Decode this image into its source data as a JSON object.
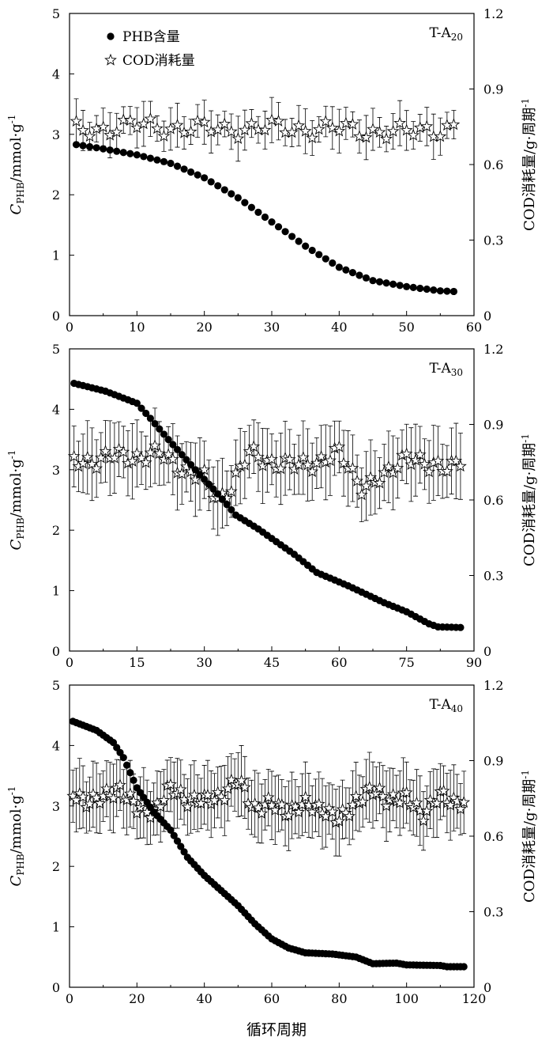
{
  "xlabel": "循环周期",
  "y1label": {
    "main": "C",
    "sub": "PHB",
    "rest": "/mmol·g",
    "sup": "-1"
  },
  "y2label": {
    "main": "COD消耗量/g·周期",
    "sup": "-1"
  },
  "legend": {
    "phb": "PHB含量",
    "cod": "COD消耗量"
  },
  "chart_data": [
    {
      "type": "scatter",
      "tag": {
        "main": "T-A",
        "sub": "20"
      },
      "x_max": 60,
      "x_ticks": [
        0,
        10,
        20,
        30,
        40,
        50,
        60
      ],
      "y1lim": [
        0,
        5
      ],
      "y1_ticks": [
        0,
        1,
        2,
        3,
        4,
        5
      ],
      "y2lim": [
        0,
        1.2
      ],
      "y2_ticks": [
        "0",
        "0.3",
        "0.6",
        "0.9",
        "1.2"
      ],
      "legend_position": "top-left",
      "series": [
        {
          "name": "PHB含量",
          "axis": "left",
          "x_range": [
            1,
            57
          ],
          "keypoints": [
            [
              1,
              2.83
            ],
            [
              5,
              2.76
            ],
            [
              10,
              2.66
            ],
            [
              15,
              2.52
            ],
            [
              20,
              2.28
            ],
            [
              25,
              1.95
            ],
            [
              30,
              1.55
            ],
            [
              35,
              1.15
            ],
            [
              40,
              0.8
            ],
            [
              45,
              0.58
            ],
            [
              50,
              0.48
            ],
            [
              55,
              0.41
            ],
            [
              57,
              0.4
            ]
          ]
        },
        {
          "name": "COD消耗量",
          "axis": "right",
          "x_range": [
            1,
            57
          ],
          "keypoints": [
            [
              1,
              0.735
            ],
            [
              10,
              0.755
            ],
            [
              20,
              0.74
            ],
            [
              30,
              0.745
            ],
            [
              40,
              0.74
            ],
            [
              50,
              0.725
            ],
            [
              57,
              0.75
            ]
          ],
          "error": [
            0.05,
            0.09
          ]
        }
      ]
    },
    {
      "type": "scatter",
      "tag": {
        "main": "T-A",
        "sub": "30"
      },
      "x_max": 90,
      "x_ticks": [
        0,
        15,
        30,
        45,
        60,
        75,
        90
      ],
      "y1lim": [
        0,
        5
      ],
      "y1_ticks": [
        0,
        1,
        2,
        3,
        4,
        5
      ],
      "y2lim": [
        0,
        1.2
      ],
      "y2_ticks": [
        "0",
        "0.3",
        "0.6",
        "0.9",
        "1.2"
      ],
      "series": [
        {
          "name": "PHB含量",
          "axis": "left",
          "x_range": [
            1,
            87
          ],
          "keypoints": [
            [
              1,
              4.43
            ],
            [
              8,
              4.3
            ],
            [
              15,
              4.1
            ],
            [
              18,
              3.85
            ],
            [
              22,
              3.5
            ],
            [
              28,
              3.0
            ],
            [
              33,
              2.6
            ],
            [
              37,
              2.25
            ],
            [
              42,
              2.02
            ],
            [
              50,
              1.6
            ],
            [
              55,
              1.3
            ],
            [
              62,
              1.08
            ],
            [
              70,
              0.8
            ],
            [
              75,
              0.65
            ],
            [
              80,
              0.45
            ],
            [
              82,
              0.4
            ],
            [
              87,
              0.39
            ]
          ]
        },
        {
          "name": "COD消耗量",
          "axis": "right",
          "x_range": [
            1,
            87
          ],
          "keypoints": [
            [
              1,
              0.75
            ],
            [
              10,
              0.77
            ],
            [
              20,
              0.78
            ],
            [
              30,
              0.68
            ],
            [
              33,
              0.6
            ],
            [
              36,
              0.66
            ],
            [
              40,
              0.78
            ],
            [
              50,
              0.73
            ],
            [
              60,
              0.78
            ],
            [
              65,
              0.66
            ],
            [
              70,
              0.68
            ],
            [
              75,
              0.79
            ],
            [
              80,
              0.72
            ],
            [
              87,
              0.76
            ]
          ],
          "error": [
            0.1,
            0.15
          ]
        }
      ]
    },
    {
      "type": "scatter",
      "tag": {
        "main": "T-A",
        "sub": "40"
      },
      "x_max": 120,
      "x_ticks": [
        0,
        20,
        40,
        60,
        80,
        100,
        120
      ],
      "y1lim": [
        0,
        5
      ],
      "y1_ticks": [
        0,
        1,
        2,
        3,
        4,
        5
      ],
      "y2lim": [
        0,
        1.2
      ],
      "y2_ticks": [
        "0",
        "0.3",
        "0.6",
        "0.9",
        "1.2"
      ],
      "series": [
        {
          "name": "PHB含量",
          "axis": "left",
          "x_range": [
            1,
            117
          ],
          "keypoints": [
            [
              1,
              4.4
            ],
            [
              8,
              4.25
            ],
            [
              13,
              4.05
            ],
            [
              16,
              3.8
            ],
            [
              20,
              3.3
            ],
            [
              25,
              2.9
            ],
            [
              30,
              2.6
            ],
            [
              35,
              2.15
            ],
            [
              40,
              1.85
            ],
            [
              45,
              1.6
            ],
            [
              50,
              1.35
            ],
            [
              55,
              1.05
            ],
            [
              60,
              0.8
            ],
            [
              65,
              0.65
            ],
            [
              70,
              0.57
            ],
            [
              78,
              0.55
            ],
            [
              85,
              0.5
            ],
            [
              90,
              0.39
            ],
            [
              97,
              0.4
            ],
            [
              100,
              0.37
            ],
            [
              110,
              0.36
            ],
            [
              112,
              0.34
            ],
            [
              117,
              0.34
            ]
          ]
        },
        {
          "name": "COD消耗量",
          "axis": "right",
          "x_range": [
            1,
            117
          ],
          "keypoints": [
            [
              1,
              0.76
            ],
            [
              10,
              0.74
            ],
            [
              15,
              0.8
            ],
            [
              20,
              0.7
            ],
            [
              25,
              0.71
            ],
            [
              30,
              0.78
            ],
            [
              40,
              0.73
            ],
            [
              50,
              0.81
            ],
            [
              55,
              0.72
            ],
            [
              65,
              0.71
            ],
            [
              75,
              0.72
            ],
            [
              80,
              0.65
            ],
            [
              85,
              0.75
            ],
            [
              90,
              0.77
            ],
            [
              100,
              0.74
            ],
            [
              105,
              0.7
            ],
            [
              110,
              0.75
            ],
            [
              117,
              0.74
            ]
          ],
          "error": [
            0.1,
            0.14
          ]
        }
      ]
    }
  ]
}
